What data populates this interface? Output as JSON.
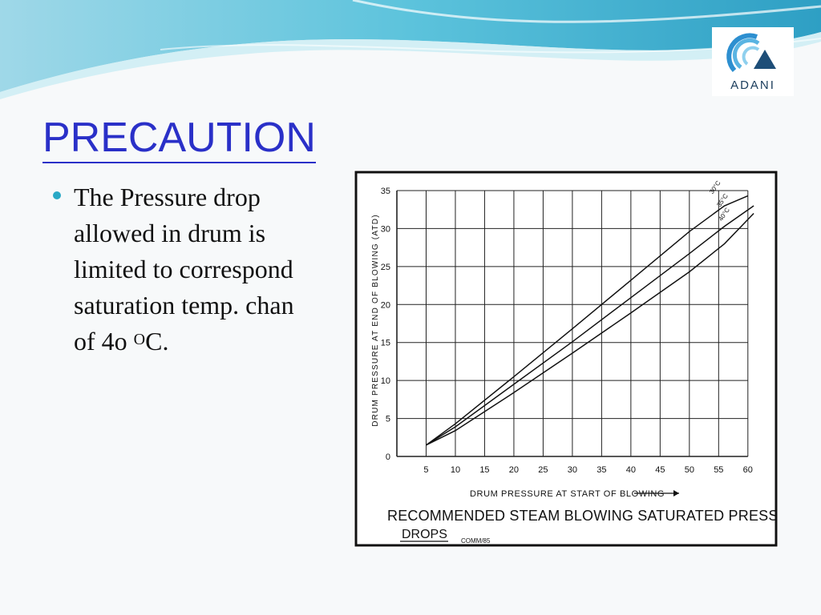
{
  "slide": {
    "title": "PRECAUTION",
    "bullet": {
      "lines": [
        "The Pressure drop",
        "allowed in drum is",
        "limited to correspond",
        "saturation temp. chan"
      ],
      "last_line_prefix": "of 4o ",
      "last_line_sup": "O",
      "last_line_suffix": "C."
    }
  },
  "logo": {
    "text": "ADANI"
  },
  "colors": {
    "title": "#2a30c8",
    "bullet": "#2aa9c6",
    "wave": "#5cc3dc"
  },
  "chart_data": {
    "type": "line",
    "xlabel": "DRUM PRESSURE AT START OF BLOWING",
    "ylabel": "DRUM PRESSURE AT END OF BLOWING (ATD)",
    "caption_line1": "RECOMMENDED STEAM BLOWING SATURATED PRESSURE",
    "caption_line2": "DROPS",
    "note": "COMM/85",
    "xlim": [
      0,
      60
    ],
    "ylim": [
      0,
      35
    ],
    "x_ticks": [
      5,
      10,
      15,
      20,
      25,
      30,
      35,
      40,
      45,
      50,
      55,
      60
    ],
    "y_ticks": [
      0,
      5,
      10,
      15,
      20,
      25,
      30,
      35
    ],
    "grid": true,
    "series": [
      {
        "name": "30°C",
        "x": [
          5,
          10,
          20,
          30,
          40,
          50,
          56,
          60
        ],
        "y": [
          1.5,
          4.3,
          10.5,
          16.8,
          23.2,
          29.6,
          33.0,
          34.3
        ]
      },
      {
        "name": "35°C",
        "x": [
          5,
          10,
          20,
          30,
          40,
          50,
          56,
          61
        ],
        "y": [
          1.5,
          3.9,
          9.5,
          15.1,
          20.9,
          26.7,
          30.3,
          33.0
        ]
      },
      {
        "name": "40°C",
        "x": [
          5,
          10,
          20,
          30,
          40,
          50,
          56,
          61
        ],
        "y": [
          1.5,
          3.4,
          8.4,
          13.6,
          18.9,
          24.3,
          28.0,
          32.0
        ]
      }
    ]
  }
}
